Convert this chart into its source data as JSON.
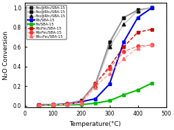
{
  "title": "",
  "xlabel": "Temperature(°C)",
  "ylabel": "N₂O Conversion",
  "xlim": [
    0,
    500
  ],
  "ylim": [
    -0.02,
    1.05
  ],
  "xticks": [
    0,
    100,
    200,
    300,
    400,
    500
  ],
  "yticks": [
    0.0,
    0.2,
    0.4,
    0.6,
    0.8,
    1.0
  ],
  "series": [
    {
      "label": "Fe₁@Rh₁/SBA-15",
      "color": "#aaaaaa",
      "linestyle": "-",
      "marker": "s",
      "markerfacecolor": "#222222",
      "markeredgecolor": "#222222",
      "markersize": 3.5,
      "linewidth": 1.0,
      "x": [
        50,
        100,
        150,
        200,
        250,
        300,
        350,
        400,
        450
      ],
      "y": [
        0.005,
        0.01,
        0.02,
        0.05,
        0.23,
        0.63,
        0.9,
        0.97,
        1.0
      ]
    },
    {
      "label": "Fe₂@Rh₁/SBA-15",
      "color": "#888888",
      "linestyle": "-",
      "marker": "s",
      "markerfacecolor": "#111111",
      "markeredgecolor": "#111111",
      "markersize": 3.5,
      "linewidth": 1.0,
      "x": [
        50,
        100,
        150,
        200,
        250,
        300,
        350,
        400,
        450
      ],
      "y": [
        0.005,
        0.01,
        0.02,
        0.055,
        0.22,
        0.65,
        0.9,
        0.98,
        1.0
      ]
    },
    {
      "label": "Fe₃@Rh₁/SBA-15",
      "color": "#bbbbbb",
      "linestyle": "-",
      "marker": "^",
      "markerfacecolor": "#111111",
      "markeredgecolor": "#111111",
      "markersize": 3.5,
      "linewidth": 1.0,
      "x": [
        50,
        100,
        150,
        200,
        250,
        300,
        350,
        400,
        450
      ],
      "y": [
        0.005,
        0.01,
        0.025,
        0.055,
        0.2,
        0.6,
        0.83,
        0.97,
        1.0
      ]
    },
    {
      "label": "Rh/SBA-15",
      "color": "#0000ee",
      "linestyle": "-",
      "marker": "s",
      "markerfacecolor": "#0000ee",
      "markeredgecolor": "#0000ee",
      "markersize": 3.5,
      "linewidth": 1.5,
      "x": [
        50,
        100,
        150,
        200,
        250,
        300,
        350,
        400,
        450
      ],
      "y": [
        0.005,
        0.01,
        0.015,
        0.04,
        0.07,
        0.22,
        0.65,
        0.9,
        1.0
      ]
    },
    {
      "label": "Fe/SBA-15",
      "color": "#00bb00",
      "linestyle": "-",
      "marker": "s",
      "markerfacecolor": "#00bb00",
      "markeredgecolor": "#00bb00",
      "markersize": 3.5,
      "linewidth": 1.5,
      "x": [
        50,
        100,
        150,
        200,
        250,
        300,
        350,
        400,
        450
      ],
      "y": [
        0.002,
        0.005,
        0.008,
        0.01,
        0.025,
        0.05,
        0.11,
        0.16,
        0.23
      ]
    },
    {
      "label": "Rh₁Fe₁/SBA-15",
      "color": "#cc0000",
      "linestyle": "--",
      "marker": "s",
      "markerfacecolor": "#cc0000",
      "markeredgecolor": "#cc0000",
      "markersize": 3.5,
      "linewidth": 1.0,
      "x": [
        50,
        100,
        150,
        200,
        250,
        300,
        350,
        400,
        450
      ],
      "y": [
        0.01,
        0.01,
        0.015,
        0.04,
        0.22,
        0.4,
        0.6,
        0.75,
        0.78
      ]
    },
    {
      "label": "Rh₅Fe₁/SBA-15",
      "color": "#ff7777",
      "linestyle": "--",
      "marker": "o",
      "markerfacecolor": "#ff3333",
      "markeredgecolor": "#ff3333",
      "markersize": 3.5,
      "linewidth": 1.0,
      "x": [
        50,
        100,
        150,
        200,
        250,
        300,
        350,
        400,
        450
      ],
      "y": [
        0.005,
        0.01,
        0.015,
        0.04,
        0.22,
        0.38,
        0.55,
        0.61,
        0.62
      ]
    },
    {
      "label": "Rh₁₁Fe₁/SBA-15",
      "color": "#ffaaaa",
      "linestyle": "--",
      "marker": "^",
      "markerfacecolor": "#ff6666",
      "markeredgecolor": "#ff6666",
      "markersize": 3.5,
      "linewidth": 1.0,
      "x": [
        50,
        100,
        150,
        200,
        250,
        300,
        350,
        400,
        450
      ],
      "y": [
        0.003,
        0.008,
        0.01,
        0.025,
        0.19,
        0.33,
        0.48,
        0.59,
        0.62
      ]
    }
  ]
}
